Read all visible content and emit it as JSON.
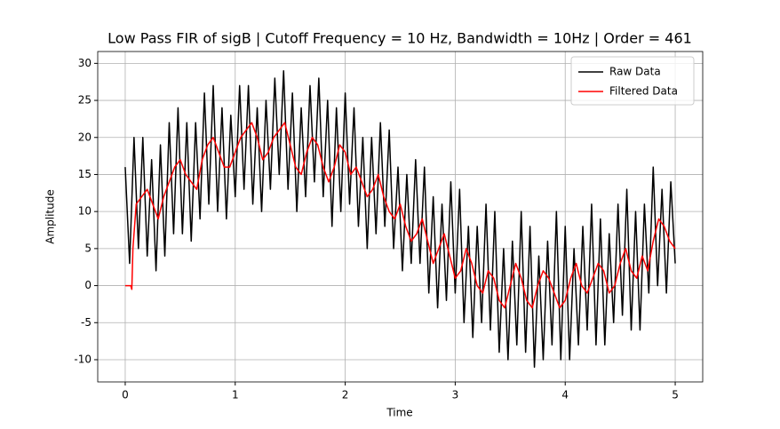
{
  "chart_data": {
    "type": "line",
    "title": "Low Pass FIR of sigB | Cutoff Frequency = 10 Hz, Bandwidth = 10Hz | Order = 461",
    "x_label": "Time",
    "y_label": "Amplitude",
    "xlim": [
      -0.25,
      5.25
    ],
    "xticks": [
      0,
      1,
      2,
      3,
      4,
      5
    ],
    "ylim": [
      -13,
      31.6
    ],
    "yticks": [
      -10,
      -5,
      0,
      5,
      10,
      15,
      20,
      25,
      30
    ],
    "grid": true,
    "legend": "upper-right",
    "series": [
      {
        "name": "Raw Data",
        "color": "#000000",
        "x": [
          0,
          0.04,
          0.08,
          0.12,
          0.16,
          0.2,
          0.24,
          0.28,
          0.32,
          0.36,
          0.4,
          0.44,
          0.48,
          0.52,
          0.56,
          0.6,
          0.64,
          0.68,
          0.72,
          0.76,
          0.8,
          0.84,
          0.88,
          0.92,
          0.96,
          1,
          1.04,
          1.08,
          1.12,
          1.16,
          1.2,
          1.24,
          1.28,
          1.32,
          1.36,
          1.4,
          1.44,
          1.48,
          1.52,
          1.56,
          1.6,
          1.64,
          1.68,
          1.72,
          1.76,
          1.8,
          1.84,
          1.88,
          1.92,
          1.96,
          2,
          2.04,
          2.08,
          2.12,
          2.16,
          2.2,
          2.24,
          2.28,
          2.32,
          2.36,
          2.4,
          2.44,
          2.48,
          2.52,
          2.56,
          2.6,
          2.64,
          2.68,
          2.72,
          2.76,
          2.8,
          2.84,
          2.88,
          2.92,
          2.96,
          3,
          3.04,
          3.08,
          3.12,
          3.16,
          3.2,
          3.24,
          3.28,
          3.32,
          3.36,
          3.4,
          3.44,
          3.48,
          3.52,
          3.56,
          3.6,
          3.64,
          3.68,
          3.72,
          3.76,
          3.8,
          3.84,
          3.88,
          3.92,
          3.96,
          4,
          4.04,
          4.08,
          4.12,
          4.16,
          4.2,
          4.24,
          4.28,
          4.32,
          4.36,
          4.4,
          4.44,
          4.48,
          4.52,
          4.56,
          4.6,
          4.64,
          4.68,
          4.72,
          4.76,
          4.8,
          4.84,
          4.88,
          4.92,
          4.96,
          5
        ],
        "values": [
          16,
          3,
          20,
          5,
          20,
          4,
          17,
          2,
          19,
          4,
          22,
          7,
          24,
          7,
          22,
          6,
          22,
          9,
          26,
          11,
          27,
          10,
          24,
          9,
          23,
          12,
          27,
          13,
          27,
          11,
          24,
          10,
          25,
          13,
          28,
          15,
          29,
          13,
          26,
          10,
          24,
          12,
          27,
          14,
          28,
          12,
          25,
          8,
          24,
          10,
          26,
          11,
          24,
          8,
          20,
          5,
          20,
          7,
          22,
          8,
          21,
          5,
          16,
          2,
          15,
          3,
          17,
          3,
          16,
          -1,
          12,
          -3,
          11,
          -2,
          14,
          -1,
          13,
          -5,
          8,
          -7,
          8,
          -5,
          11,
          -6,
          10,
          -9,
          5,
          -10,
          6,
          -8,
          10,
          -9,
          8,
          -11,
          4,
          -10,
          6,
          -8,
          10,
          -10,
          8,
          -10,
          5,
          -8,
          8,
          -6,
          11,
          -8,
          9,
          -8,
          7,
          -5,
          11,
          -4,
          13,
          -6,
          10,
          -6,
          11,
          -1,
          16,
          0,
          13,
          -1,
          14,
          3
        ]
      },
      {
        "name": "Filtered Data",
        "color": "#ff0000",
        "x": [
          0,
          0.02,
          0.05,
          0.06,
          0.07,
          0.1,
          0.15,
          0.2,
          0.25,
          0.3,
          0.35,
          0.4,
          0.45,
          0.5,
          0.55,
          0.6,
          0.65,
          0.7,
          0.75,
          0.8,
          0.85,
          0.9,
          0.95,
          1,
          1.05,
          1.1,
          1.15,
          1.2,
          1.25,
          1.3,
          1.35,
          1.4,
          1.45,
          1.5,
          1.55,
          1.6,
          1.65,
          1.7,
          1.75,
          1.8,
          1.85,
          1.9,
          1.95,
          2,
          2.05,
          2.1,
          2.15,
          2.2,
          2.25,
          2.3,
          2.35,
          2.4,
          2.45,
          2.5,
          2.55,
          2.6,
          2.65,
          2.7,
          2.75,
          2.8,
          2.85,
          2.9,
          2.95,
          3,
          3.05,
          3.1,
          3.15,
          3.2,
          3.25,
          3.3,
          3.35,
          3.4,
          3.45,
          3.5,
          3.55,
          3.6,
          3.65,
          3.7,
          3.75,
          3.8,
          3.85,
          3.9,
          3.95,
          4,
          4.05,
          4.1,
          4.15,
          4.2,
          4.25,
          4.3,
          4.35,
          4.4,
          4.45,
          4.5,
          4.55,
          4.6,
          4.65,
          4.7,
          4.75,
          4.8,
          4.85,
          4.9,
          4.95,
          5
        ],
        "values": [
          0,
          0,
          0,
          -0.5,
          5,
          11,
          12,
          13,
          11,
          9,
          12,
          14,
          16,
          17,
          15,
          14,
          13,
          17,
          19,
          20,
          18,
          16,
          16,
          18,
          20,
          21,
          22,
          20,
          17,
          18,
          20,
          21,
          22,
          19,
          16,
          15,
          18,
          20,
          19,
          16,
          14,
          16,
          19,
          18,
          15,
          16,
          14,
          12,
          13,
          15,
          12,
          10,
          9,
          11,
          8,
          6,
          7,
          9,
          6,
          3,
          5,
          7,
          4,
          1,
          2,
          5,
          3,
          0,
          -1,
          2,
          1,
          -2,
          -3,
          0,
          3,
          1,
          -2,
          -3,
          0,
          2,
          1,
          -1,
          -3,
          -2,
          1,
          3,
          0,
          -1,
          1,
          3,
          2,
          -1,
          0,
          3,
          5,
          2,
          1,
          4,
          2,
          6,
          9,
          8,
          6,
          5
        ]
      }
    ]
  }
}
